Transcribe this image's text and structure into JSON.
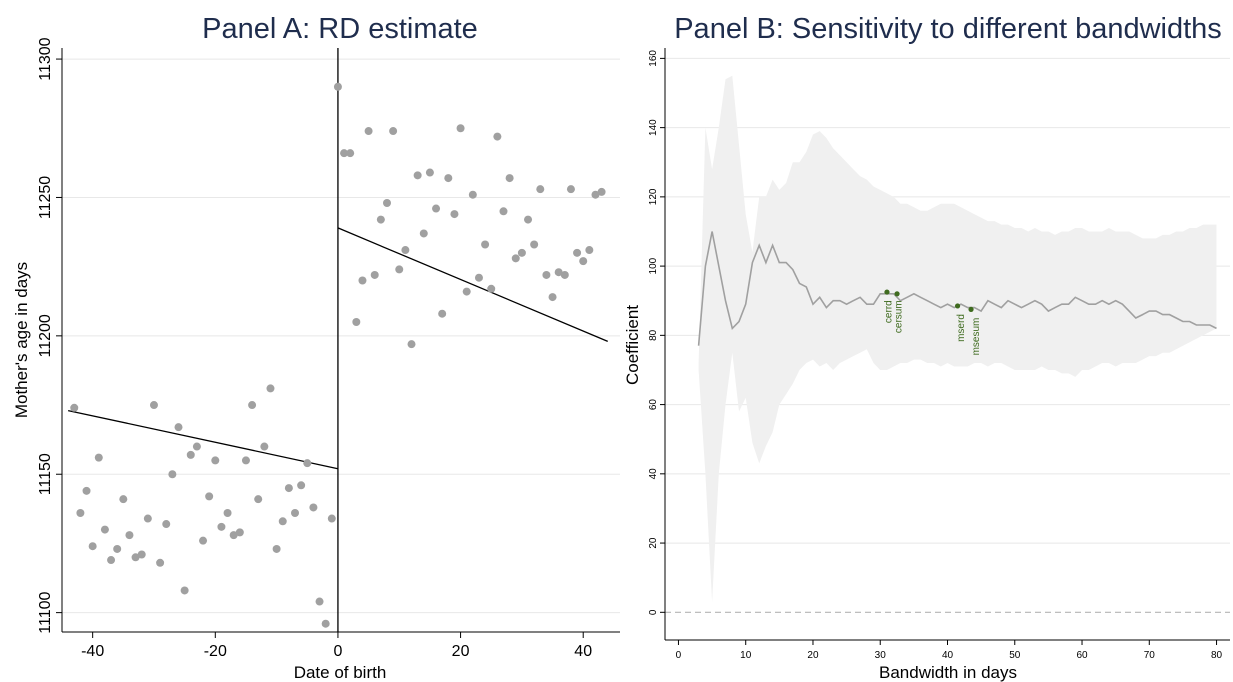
{
  "chart_data": [
    {
      "type": "scatter",
      "title": "Panel A: RD estimate",
      "xlabel": "Date of birth",
      "ylabel": "Mother's age in days",
      "xlim": [
        -45,
        46
      ],
      "ylim": [
        11093,
        11304
      ],
      "xticks": [
        -40,
        -20,
        0,
        20,
        40
      ],
      "yticks": [
        11100,
        11150,
        11200,
        11250,
        11300
      ],
      "grid": true,
      "cutoff": 0,
      "points": [
        {
          "x": -43,
          "y": 11174
        },
        {
          "x": -42,
          "y": 11136
        },
        {
          "x": -41,
          "y": 11144
        },
        {
          "x": -40,
          "y": 11124
        },
        {
          "x": -39,
          "y": 11156
        },
        {
          "x": -38,
          "y": 11130
        },
        {
          "x": -37,
          "y": 11119
        },
        {
          "x": -36,
          "y": 11123
        },
        {
          "x": -35,
          "y": 11141
        },
        {
          "x": -34,
          "y": 11128
        },
        {
          "x": -33,
          "y": 11120
        },
        {
          "x": -32,
          "y": 11121
        },
        {
          "x": -31,
          "y": 11134
        },
        {
          "x": -30,
          "y": 11175
        },
        {
          "x": -29,
          "y": 11118
        },
        {
          "x": -28,
          "y": 11132
        },
        {
          "x": -27,
          "y": 11150
        },
        {
          "x": -26,
          "y": 11167
        },
        {
          "x": -25,
          "y": 11108
        },
        {
          "x": -24,
          "y": 11157
        },
        {
          "x": -23,
          "y": 11160
        },
        {
          "x": -22,
          "y": 11126
        },
        {
          "x": -21,
          "y": 11142
        },
        {
          "x": -20,
          "y": 11155
        },
        {
          "x": -19,
          "y": 11131
        },
        {
          "x": -18,
          "y": 11136
        },
        {
          "x": -17,
          "y": 11128
        },
        {
          "x": -16,
          "y": 11129
        },
        {
          "x": -15,
          "y": 11155
        },
        {
          "x": -14,
          "y": 11175
        },
        {
          "x": -13,
          "y": 11141
        },
        {
          "x": -12,
          "y": 11160
        },
        {
          "x": -11,
          "y": 11181
        },
        {
          "x": -10,
          "y": 11123
        },
        {
          "x": -9,
          "y": 11133
        },
        {
          "x": -8,
          "y": 11145
        },
        {
          "x": -7,
          "y": 11136
        },
        {
          "x": -6,
          "y": 11146
        },
        {
          "x": -5,
          "y": 11154
        },
        {
          "x": -4,
          "y": 11138
        },
        {
          "x": -3,
          "y": 11104
        },
        {
          "x": -2,
          "y": 11096
        },
        {
          "x": -1,
          "y": 11134
        },
        {
          "x": 0,
          "y": 11290
        },
        {
          "x": 1,
          "y": 11266
        },
        {
          "x": 2,
          "y": 11266
        },
        {
          "x": 3,
          "y": 11205
        },
        {
          "x": 4,
          "y": 11220
        },
        {
          "x": 5,
          "y": 11274
        },
        {
          "x": 6,
          "y": 11222
        },
        {
          "x": 7,
          "y": 11242
        },
        {
          "x": 8,
          "y": 11248
        },
        {
          "x": 9,
          "y": 11274
        },
        {
          "x": 10,
          "y": 11224
        },
        {
          "x": 11,
          "y": 11231
        },
        {
          "x": 12,
          "y": 11197
        },
        {
          "x": 13,
          "y": 11258
        },
        {
          "x": 14,
          "y": 11237
        },
        {
          "x": 15,
          "y": 11259
        },
        {
          "x": 16,
          "y": 11246
        },
        {
          "x": 17,
          "y": 11208
        },
        {
          "x": 18,
          "y": 11257
        },
        {
          "x": 19,
          "y": 11244
        },
        {
          "x": 20,
          "y": 11275
        },
        {
          "x": 21,
          "y": 11216
        },
        {
          "x": 22,
          "y": 11251
        },
        {
          "x": 23,
          "y": 11221
        },
        {
          "x": 24,
          "y": 11233
        },
        {
          "x": 25,
          "y": 11217
        },
        {
          "x": 26,
          "y": 11272
        },
        {
          "x": 27,
          "y": 11245
        },
        {
          "x": 28,
          "y": 11257
        },
        {
          "x": 29,
          "y": 11228
        },
        {
          "x": 30,
          "y": 11230
        },
        {
          "x": 31,
          "y": 11242
        },
        {
          "x": 32,
          "y": 11233
        },
        {
          "x": 33,
          "y": 11253
        },
        {
          "x": 34,
          "y": 11222
        },
        {
          "x": 35,
          "y": 11214
        },
        {
          "x": 36,
          "y": 11223
        },
        {
          "x": 37,
          "y": 11222
        },
        {
          "x": 38,
          "y": 11253
        },
        {
          "x": 39,
          "y": 11230
        },
        {
          "x": 40,
          "y": 11227
        },
        {
          "x": 41,
          "y": 11231
        },
        {
          "x": 42,
          "y": 11251
        },
        {
          "x": 43,
          "y": 11252
        }
      ],
      "fit_lines": [
        {
          "x": [
            -44,
            0
          ],
          "y": [
            11173,
            11152
          ]
        },
        {
          "x": [
            0,
            44
          ],
          "y": [
            11239,
            11198
          ]
        }
      ],
      "colors": {
        "points": "#a0a0a0",
        "lines": "#000000",
        "grid": "#e8e8e8"
      }
    },
    {
      "type": "line",
      "title": "Panel B: Sensitivity to different bandwidths",
      "xlabel": "Bandwidth in days",
      "ylabel": "Coefficient",
      "xlim": [
        -2,
        82
      ],
      "ylim": [
        -8,
        163
      ],
      "xticks": [
        0,
        10,
        20,
        30,
        40,
        50,
        60,
        70,
        80
      ],
      "yticks": [
        0,
        20,
        40,
        60,
        80,
        100,
        120,
        140,
        160
      ],
      "grid": true,
      "reference_line_y": 0,
      "x": [
        3,
        4,
        5,
        6,
        7,
        8,
        9,
        10,
        11,
        12,
        13,
        14,
        15,
        16,
        17,
        18,
        19,
        20,
        21,
        22,
        23,
        24,
        25,
        26,
        27,
        28,
        29,
        30,
        31,
        32,
        33,
        34,
        35,
        36,
        37,
        38,
        39,
        40,
        41,
        42,
        43,
        44,
        45,
        46,
        47,
        48,
        49,
        50,
        51,
        52,
        53,
        54,
        55,
        56,
        57,
        58,
        59,
        60,
        61,
        62,
        63,
        64,
        65,
        66,
        67,
        68,
        69,
        70,
        71,
        72,
        73,
        74,
        75,
        76,
        77,
        78,
        79,
        80
      ],
      "coefficient": [
        77,
        100,
        110,
        100,
        90,
        82,
        84,
        89,
        101,
        106,
        101,
        106,
        101,
        101,
        99,
        95,
        94,
        89,
        91,
        88,
        90,
        90,
        89,
        90,
        91,
        89,
        89,
        92,
        92,
        92,
        90,
        91,
        92,
        91,
        90,
        89,
        88,
        89,
        88,
        89,
        88,
        88,
        87,
        90,
        89,
        88,
        90,
        89,
        88,
        89,
        90,
        89,
        87,
        88,
        89,
        89,
        91,
        90,
        89,
        89,
        90,
        89,
        90,
        89,
        87,
        85,
        86,
        87,
        87,
        86,
        86,
        85,
        84,
        84,
        83,
        83,
        83,
        82
      ],
      "ci_upper": [
        72,
        140,
        128,
        140,
        154,
        155,
        135,
        115,
        104,
        120,
        120,
        125,
        122,
        124,
        130,
        130,
        133,
        138,
        139,
        137,
        134,
        132,
        130,
        128,
        126,
        125,
        123,
        122,
        121,
        120,
        118,
        118,
        117,
        116,
        116,
        117,
        118,
        118,
        118,
        117,
        116,
        115,
        114,
        113,
        113,
        112,
        112,
        111,
        111,
        110,
        111,
        110,
        110,
        109,
        110,
        110,
        111,
        111,
        110,
        110,
        110,
        111,
        110,
        110,
        110,
        109,
        108,
        108,
        108,
        109,
        109,
        110,
        110,
        111,
        111,
        112,
        112,
        112
      ],
      "ci_lower": [
        70,
        40,
        3,
        40,
        60,
        75,
        58,
        62,
        49,
        43,
        48,
        52,
        60,
        63,
        66,
        70,
        72,
        73,
        71,
        72,
        70,
        72,
        73,
        74,
        75,
        76,
        72,
        70,
        70,
        71,
        72,
        72,
        73,
        73,
        72,
        72,
        71,
        72,
        71,
        71,
        71,
        72,
        72,
        71,
        72,
        72,
        71,
        70,
        70,
        70,
        70,
        71,
        70,
        70,
        69,
        69,
        68,
        70,
        70,
        71,
        72,
        72,
        71,
        72,
        72,
        72,
        73,
        74,
        74,
        75,
        75,
        76,
        77,
        78,
        79,
        80,
        81,
        82
      ],
      "bandwidth_markers": [
        {
          "x": 31,
          "y": 92.5
        },
        {
          "x": 32.5,
          "y": 92
        },
        {
          "x": 41.5,
          "y": 88.5
        },
        {
          "x": 43.5,
          "y": 87.5
        }
      ],
      "annotations": [
        {
          "label": "cerrd",
          "x": 31.2,
          "y": 91
        },
        {
          "label": "cersum",
          "x": 32.7,
          "y": 91
        },
        {
          "label": "mserd",
          "x": 42.0,
          "y": 87
        },
        {
          "label": "msesum",
          "x": 44.2,
          "y": 86
        }
      ],
      "colors": {
        "line": "#a0a0a0",
        "band": "#f0f0f0",
        "markers": "#3f6b1f",
        "reference": "#b5b5b5",
        "grid": "#e8e8e8"
      }
    }
  ]
}
